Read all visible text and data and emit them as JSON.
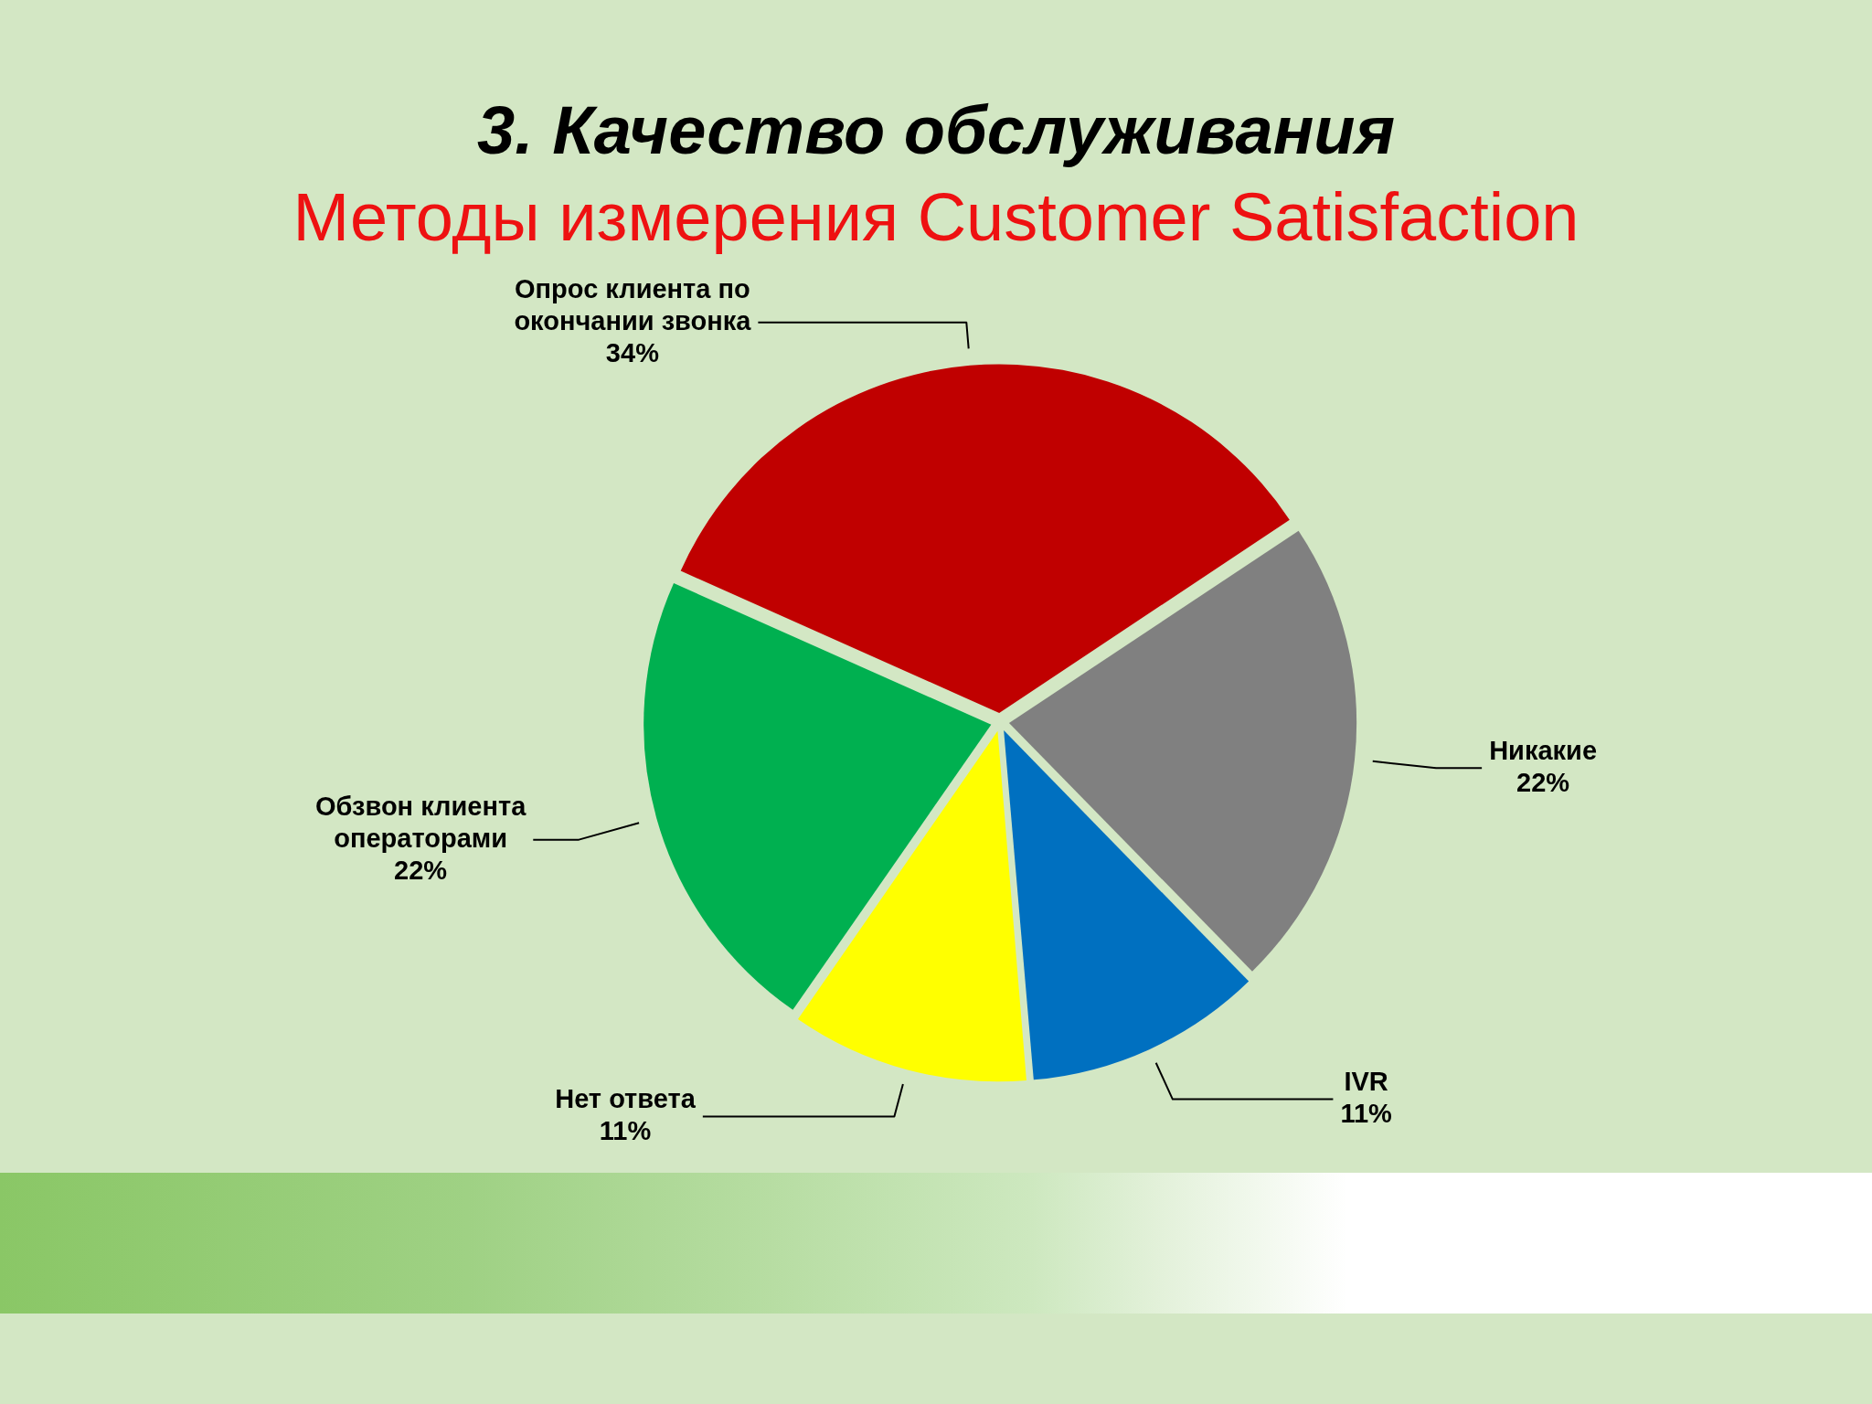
{
  "chart_data": {
    "type": "pie",
    "title": "3. Качество обслуживания",
    "subtitle": "Методы измерения Customer Satisfaction",
    "categories": [
      "Опрос клиента по окончании звонка",
      "Никакие",
      "IVR",
      "Нет ответа",
      "Обзвон клиента операторами"
    ],
    "values": [
      34,
      22,
      11,
      11,
      22
    ],
    "colors": [
      "#c00000",
      "#808080",
      "#0070c0",
      "#ffff00",
      "#00b050"
    ],
    "value_labels": [
      "34%",
      "22%",
      "11%",
      "11%",
      "22%"
    ]
  }
}
